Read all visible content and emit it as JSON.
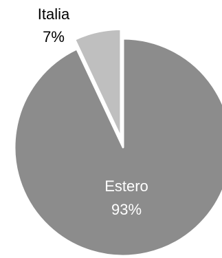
{
  "chart_data": {
    "type": "pie",
    "title": "",
    "series": [
      {
        "values": [
          {
            "label": "Estero",
            "value": 93,
            "display": "93%",
            "color": "#8c8c8c",
            "label_color": "#ffffff"
          },
          {
            "label": "Italia",
            "value": 7,
            "display": "7%",
            "color": "#bfbfbf",
            "label_color": "#000000"
          }
        ]
      }
    ],
    "legend": "none",
    "slice_border_color": "#ffffff",
    "data_labels": "category and percentage"
  }
}
